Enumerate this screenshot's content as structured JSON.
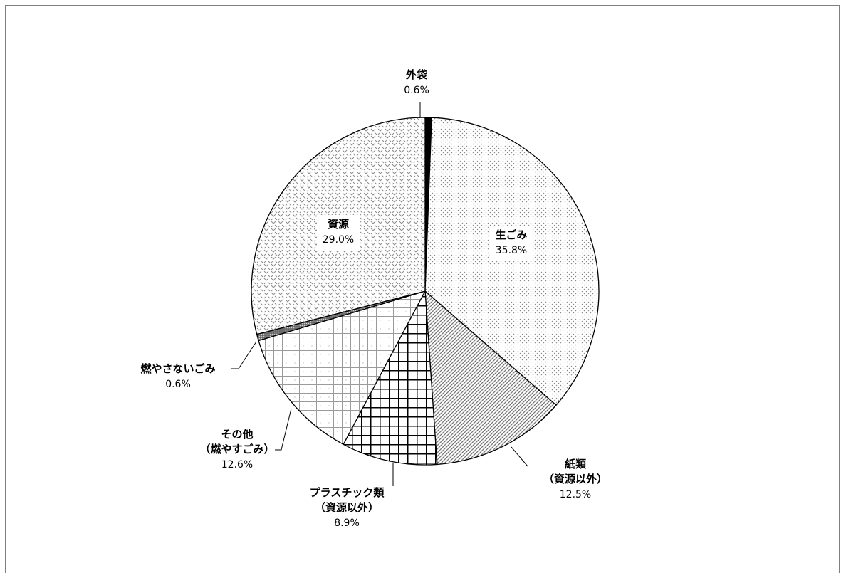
{
  "chart_data": {
    "type": "pie",
    "title": "",
    "slices": [
      {
        "name_lines": [
          "外袋"
        ],
        "value": 0.6,
        "label": "0.6%",
        "pattern": "solid"
      },
      {
        "name_lines": [
          "生ごみ"
        ],
        "value": 35.8,
        "label": "35.8%",
        "pattern": "dots"
      },
      {
        "name_lines": [
          "紙類",
          "（資源以外）"
        ],
        "value": 12.5,
        "label": "12.5%",
        "pattern": "diag"
      },
      {
        "name_lines": [
          "プラスチック類",
          "（資源以外）"
        ],
        "value": 8.9,
        "label": "8.9%",
        "pattern": "grid"
      },
      {
        "name_lines": [
          "その他",
          "（燃やすごみ）"
        ],
        "value": 12.6,
        "label": "12.6%",
        "pattern": "lightgrid"
      },
      {
        "name_lines": [
          "燃やさないごみ"
        ],
        "value": 0.6,
        "label": "0.6%",
        "pattern": "dense"
      },
      {
        "name_lines": [
          "資源"
        ],
        "value": 29.0,
        "label": "29.0%",
        "pattern": "zigzag"
      }
    ],
    "start_angle_deg": 0,
    "direction": "clockwise"
  }
}
